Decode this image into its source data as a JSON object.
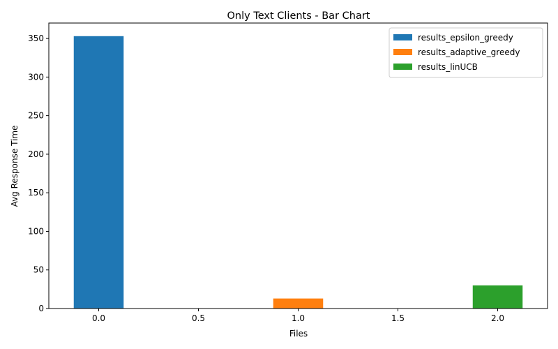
{
  "chart_data": {
    "type": "bar",
    "title": "Only Text Clients - Bar Chart",
    "xlabel": "Files",
    "ylabel": "Avg Response Time",
    "xlim": [
      -0.25,
      2.25
    ],
    "ylim": [
      0,
      370
    ],
    "xticks": [
      0.0,
      0.5,
      1.0,
      1.5,
      2.0
    ],
    "xtick_labels": [
      "0.0",
      "0.5",
      "1.0",
      "1.5",
      "2.0"
    ],
    "yticks": [
      0,
      50,
      100,
      150,
      200,
      250,
      300,
      350
    ],
    "ytick_labels": [
      "0",
      "50",
      "100",
      "150",
      "200",
      "250",
      "300",
      "350"
    ],
    "bar_width": 0.25,
    "grid": false,
    "legend_position": "top-right",
    "series": [
      {
        "name": "results_epsilon_greedy",
        "x": 0,
        "value": 353,
        "color": "#1f77b4"
      },
      {
        "name": "results_adaptive_greedy",
        "x": 1,
        "value": 13,
        "color": "#ff7f0e"
      },
      {
        "name": "results_linUCB",
        "x": 2,
        "value": 30,
        "color": "#2ca02c"
      }
    ]
  }
}
